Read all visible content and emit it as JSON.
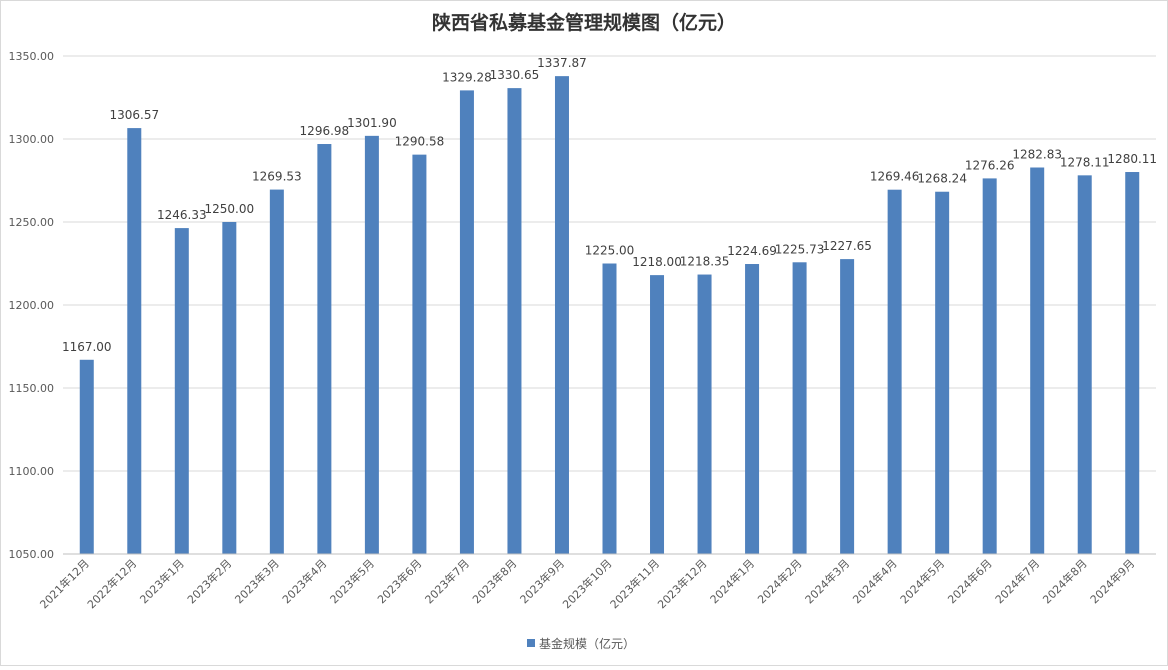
{
  "chart_data": {
    "type": "bar",
    "title": "陕西省私募基金管理规模图（亿元）",
    "categories": [
      "2021年12月",
      "2022年12月",
      "2023年1月",
      "2023年2月",
      "2023年3月",
      "2023年4月",
      "2023年5月",
      "2023年6月",
      "2023年7月",
      "2023年8月",
      "2023年9月",
      "2023年10月",
      "2023年11月",
      "2023年12月",
      "2024年1月",
      "2024年2月",
      "2024年3月",
      "2024年4月",
      "2024年5月",
      "2024年6月",
      "2024年7月",
      "2024年8月",
      "2024年9月"
    ],
    "series": [
      {
        "name": "基金规模（亿元）",
        "values": [
          1167.0,
          1306.57,
          1246.33,
          1250.0,
          1269.53,
          1296.98,
          1301.9,
          1290.58,
          1329.28,
          1330.65,
          1337.87,
          1225.0,
          1218.0,
          1218.35,
          1224.69,
          1225.73,
          1227.65,
          1269.46,
          1268.24,
          1276.26,
          1282.83,
          1278.11,
          1280.11
        ],
        "labels": [
          "1167.00",
          "1306.57",
          "1246.33",
          "1250.00",
          "1269.53",
          "1296.98",
          "1301.90",
          "1290.58",
          "1329.28",
          "1330.65",
          "1337.87",
          "1225.00",
          "1218.00",
          "1218.35",
          "1224.69",
          "1225.73",
          "1227.65",
          "1269.46",
          "1268.24",
          "1276.26",
          "1282.83",
          "1278.11",
          "1280.11"
        ]
      }
    ],
    "ylim": [
      1050,
      1350
    ],
    "yticks": [
      "1050.00",
      "1100.00",
      "1150.00",
      "1200.00",
      "1250.00",
      "1300.00",
      "1350.00"
    ],
    "grid": true,
    "legend_position": "bottom",
    "colors": {
      "bar": "#4f81bd",
      "grid": "#d9d9d9",
      "axis": "#bfbfbf"
    }
  }
}
